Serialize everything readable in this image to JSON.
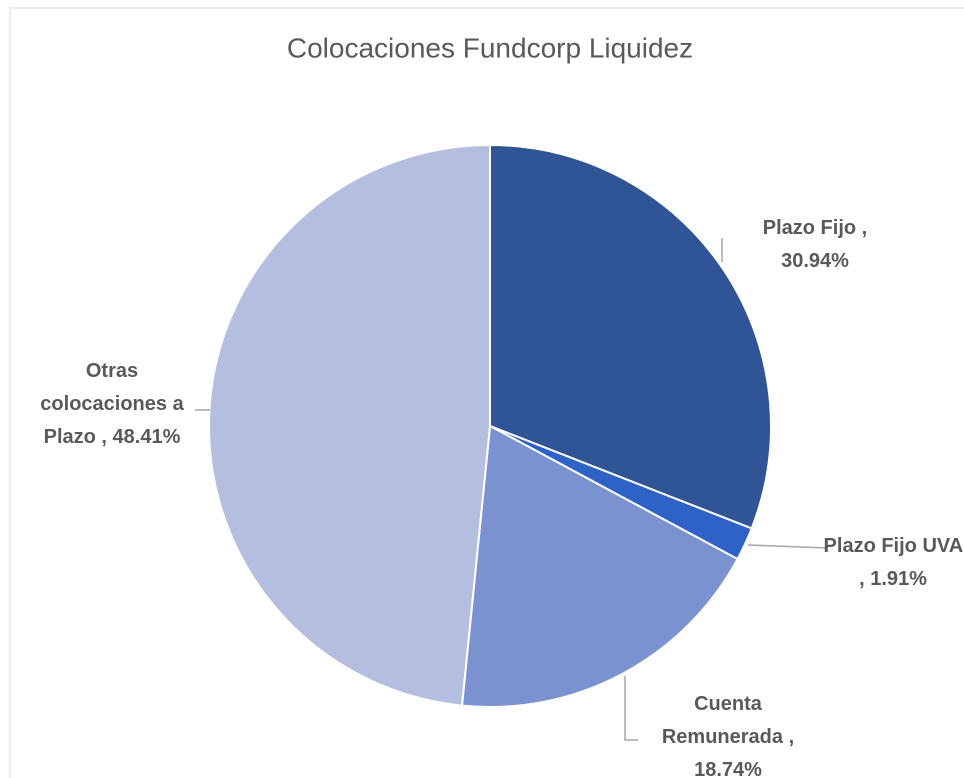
{
  "chart_data": {
    "type": "pie",
    "title": "Colocaciones Fundcorp Liquidez",
    "categories": [
      "Plazo Fijo",
      "Plazo Fijo UVA",
      "Cuenta Remunerada",
      "Otras colocaciones a Plazo"
    ],
    "values": [
      30.94,
      1.91,
      18.74,
      48.41
    ],
    "value_labels": [
      "30.94%",
      "1.91%",
      "18.74%",
      "48.41%"
    ],
    "label_separator": " ,",
    "colors": [
      "#2f5597",
      "#2e62c7",
      "#7a93d0",
      "#b4bfe0"
    ]
  }
}
